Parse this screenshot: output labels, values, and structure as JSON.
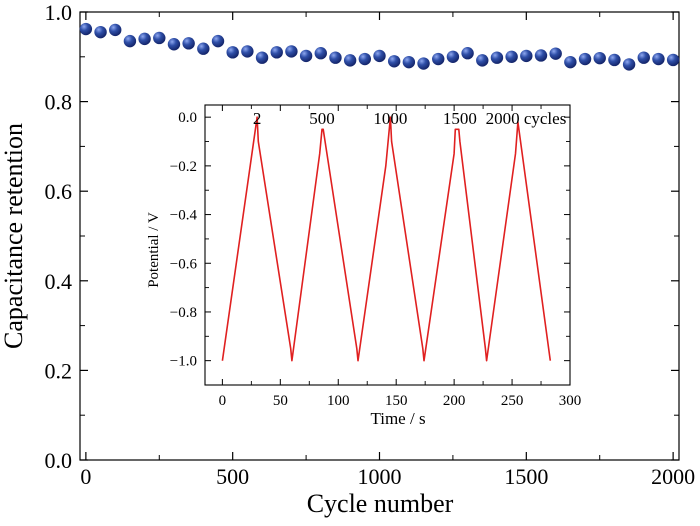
{
  "chart_data": [
    {
      "type": "scatter",
      "xlabel": "Cycle number",
      "ylabel": "Capacitance retention",
      "xlim": [
        -20,
        2020
      ],
      "ylim": [
        0.0,
        1.0
      ],
      "xticks": [
        0,
        500,
        1000,
        1500,
        2000
      ],
      "xtick_labels": [
        "0",
        "500",
        "1000",
        "1500",
        "2000"
      ],
      "yticks": [
        0.0,
        0.2,
        0.4,
        0.6,
        0.8,
        1.0
      ],
      "ytick_labels": [
        "0.0",
        "0.2",
        "0.4",
        "0.6",
        "0.8",
        "1.0"
      ],
      "marker_color": "#2f4fa8",
      "points": {
        "x": [
          0,
          50,
          100,
          150,
          200,
          250,
          300,
          350,
          400,
          450,
          500,
          550,
          600,
          650,
          700,
          750,
          800,
          850,
          900,
          950,
          1000,
          1050,
          1100,
          1150,
          1200,
          1250,
          1300,
          1350,
          1400,
          1450,
          1500,
          1550,
          1600,
          1650,
          1700,
          1750,
          1800,
          1850,
          1900,
          1950,
          2000
        ],
        "y": [
          0.962,
          0.955,
          0.96,
          0.935,
          0.94,
          0.942,
          0.928,
          0.93,
          0.918,
          0.935,
          0.91,
          0.912,
          0.898,
          0.91,
          0.912,
          0.902,
          0.908,
          0.898,
          0.892,
          0.895,
          0.902,
          0.89,
          0.888,
          0.885,
          0.895,
          0.9,
          0.908,
          0.892,
          0.898,
          0.9,
          0.902,
          0.903,
          0.907,
          0.888,
          0.895,
          0.897,
          0.893,
          0.883,
          0.898,
          0.895,
          0.893
        ]
      }
    },
    {
      "type": "line",
      "inset": true,
      "xlabel": "Time / s",
      "ylabel": "Potential / V",
      "xlim": [
        -15,
        300
      ],
      "ylim": [
        -1.1,
        0.05
      ],
      "xticks": [
        0,
        50,
        100,
        150,
        200,
        250,
        300
      ],
      "xtick_labels": [
        "0",
        "50",
        "100",
        "150",
        "200",
        "250",
        "300"
      ],
      "yticks": [
        0.0,
        -0.2,
        -0.4,
        -0.6,
        -0.8,
        -1.0
      ],
      "ytick_labels": [
        "0.0",
        "−0.2",
        "−0.4",
        "−0.6",
        "−0.8",
        "−1.0"
      ],
      "line_color": "#e02020",
      "series": {
        "x": [
          0,
          24,
          30,
          31,
          59,
          60,
          84,
          86,
          87,
          116,
          117,
          141,
          145,
          146,
          173,
          174,
          200,
          201,
          204,
          205,
          227,
          228,
          253,
          255,
          283
        ],
        "y": [
          -1.0,
          -0.2,
          0.0,
          -0.1,
          -0.95,
          -1.0,
          -0.15,
          -0.05,
          -0.05,
          -0.95,
          -1.0,
          -0.2,
          0.0,
          -0.1,
          -0.95,
          -1.0,
          -0.15,
          -0.05,
          -0.05,
          -0.1,
          -0.95,
          -1.0,
          -0.15,
          -0.02,
          -1.0
        ]
      },
      "annotations": [
        {
          "text": "2",
          "x": 30
        },
        {
          "text": "500",
          "x": 86
        },
        {
          "text": "1000",
          "x": 145
        },
        {
          "text": "1500",
          "x": 205
        },
        {
          "text": "2000 cycles",
          "x": 262
        }
      ]
    }
  ]
}
